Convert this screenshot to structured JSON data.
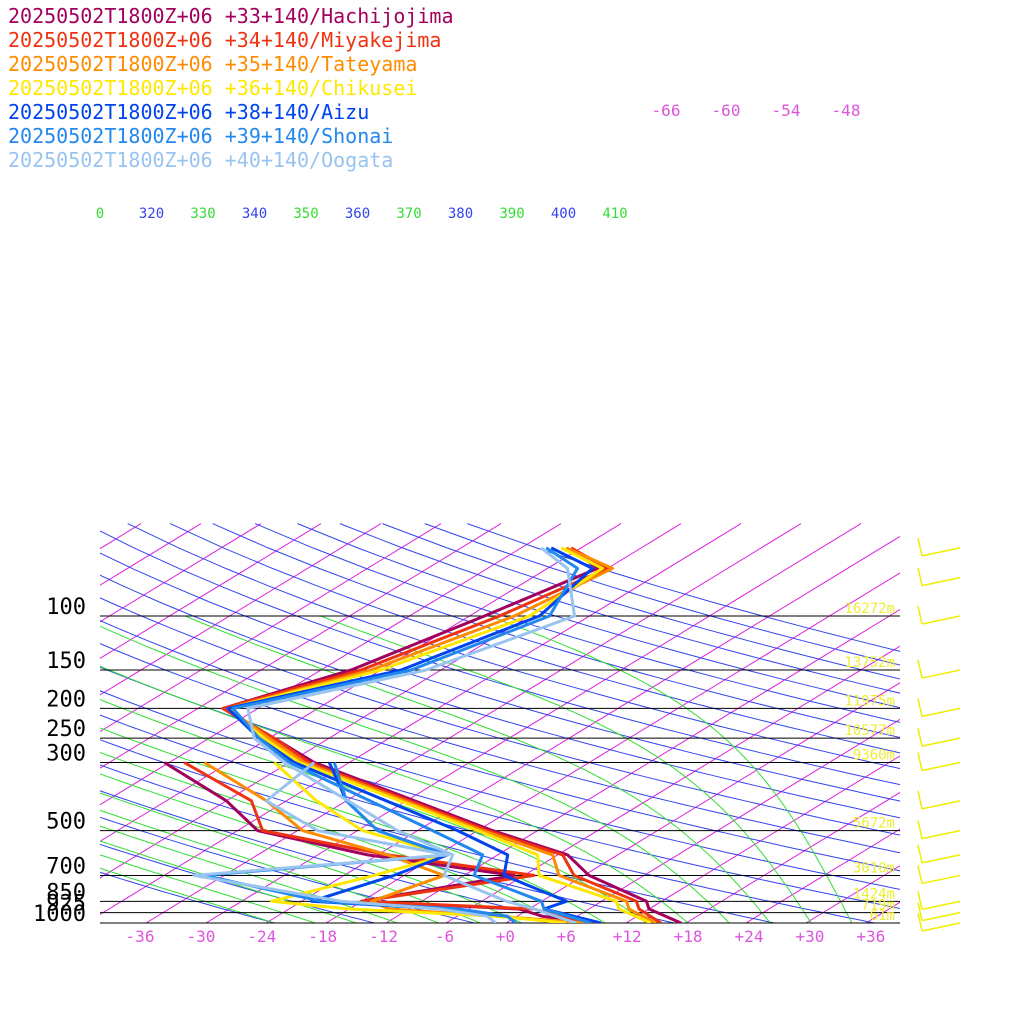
{
  "chart_data": {
    "type": "line",
    "pressure_levels": [
      100,
      150,
      200,
      250,
      300,
      500,
      700,
      850,
      925,
      1000
    ],
    "pressure_labels": [
      "100",
      "150",
      "200",
      "250",
      "300",
      "500",
      "700",
      "850",
      "925",
      "1000"
    ],
    "temperature_ticks": [
      "-36",
      "-30",
      "-24",
      "-18",
      "-12",
      "-6",
      "+0",
      "+6",
      "+12",
      "+18",
      "+24",
      "+30",
      "+36"
    ],
    "isotherm_labels_top": [
      "-66",
      "-60",
      "-54",
      "-48"
    ],
    "theta_labels": [
      "0",
      "320",
      "330",
      "340",
      "350",
      "360",
      "370",
      "380",
      "390",
      "400",
      "410"
    ],
    "height_labels": [
      "16272m",
      "13752m",
      "11975m",
      "10577m",
      "9360m",
      "5672m",
      "3010m",
      "1424m",
      "719m",
      "61m"
    ],
    "colors": {
      "isotherm": "#dd22dd",
      "dry_adiabat": "#3344ee",
      "moist_adiabat": "#33dd33",
      "height_label": "#eeee33",
      "wind_barb": "#eeee00",
      "tick_label": "#dd55dd"
    },
    "series": [
      {
        "name": "20250502T1800Z+06 +33+140/Hachijojima",
        "color": "#a3005e",
        "temperature": [
          [
            60,
            -55
          ],
          [
            70,
            -49
          ],
          [
            100,
            -52.5
          ],
          [
            150,
            -57
          ],
          [
            200,
            -63.5
          ],
          [
            250,
            -53.5
          ],
          [
            300,
            -45.5
          ],
          [
            500,
            -16.5
          ],
          [
            600,
            -5
          ],
          [
            700,
            0.5
          ],
          [
            850,
            10.5
          ],
          [
            900,
            12
          ],
          [
            1000,
            17.5
          ]
        ],
        "dewpoint": [
          [
            300,
            -60.5
          ],
          [
            400,
            -48
          ],
          [
            500,
            -40
          ],
          [
            600,
            -25
          ],
          [
            700,
            -7
          ],
          [
            850,
            -18
          ],
          [
            900,
            -1
          ],
          [
            950,
            2.5
          ],
          [
            1000,
            9
          ]
        ]
      },
      {
        "name": "20250502T1800Z+06 +34+140/Miyakejima",
        "color": "#ee3311",
        "temperature": [
          [
            60,
            -55
          ],
          [
            70,
            -48
          ],
          [
            100,
            -51
          ],
          [
            150,
            -56
          ],
          [
            200,
            -63.5
          ],
          [
            250,
            -53.5
          ],
          [
            300,
            -46
          ],
          [
            500,
            -17
          ],
          [
            600,
            -5.5
          ],
          [
            700,
            -1
          ],
          [
            850,
            9.5
          ],
          [
            900,
            11
          ],
          [
            1000,
            15.5
          ]
        ],
        "dewpoint": [
          [
            300,
            -58.5
          ],
          [
            400,
            -45.5
          ],
          [
            500,
            -39.5
          ],
          [
            600,
            -23
          ],
          [
            700,
            -5
          ],
          [
            850,
            -18
          ],
          [
            900,
            0.5
          ],
          [
            950,
            4
          ],
          [
            1000,
            9
          ]
        ]
      },
      {
        "name": "20250502T1800Z+06 +35+140/Tateyama",
        "color": "#ff8c00",
        "temperature": [
          [
            60,
            -55.5
          ],
          [
            70,
            -47.5
          ],
          [
            100,
            -49.5
          ],
          [
            150,
            -55
          ],
          [
            200,
            -63
          ],
          [
            250,
            -54
          ],
          [
            300,
            -46.5
          ],
          [
            500,
            -17.5
          ],
          [
            600,
            -6.5
          ],
          [
            700,
            -2.5
          ],
          [
            850,
            8.5
          ],
          [
            900,
            10
          ],
          [
            1000,
            15
          ]
        ],
        "dewpoint": [
          [
            300,
            -56.5
          ],
          [
            400,
            -44
          ],
          [
            500,
            -35.5
          ],
          [
            600,
            -23
          ],
          [
            700,
            -14
          ],
          [
            850,
            -17
          ],
          [
            900,
            -14
          ],
          [
            950,
            -2
          ],
          [
            1000,
            8
          ]
        ]
      },
      {
        "name": "20250502T1800Z+06 +36+140/Chikusei",
        "color": "#ffe800",
        "temperature": [
          [
            60,
            -56
          ],
          [
            70,
            -48.5
          ],
          [
            100,
            -48
          ],
          [
            150,
            -54
          ],
          [
            200,
            -63
          ],
          [
            250,
            -54.5
          ],
          [
            300,
            -47
          ],
          [
            500,
            -18
          ],
          [
            600,
            -8
          ],
          [
            700,
            -4.5
          ],
          [
            850,
            7.5
          ],
          [
            900,
            9
          ],
          [
            1000,
            14.5
          ]
        ],
        "dewpoint": [
          [
            300,
            -49.5
          ],
          [
            400,
            -39
          ],
          [
            500,
            -29.5
          ],
          [
            600,
            -17
          ],
          [
            700,
            -21
          ],
          [
            850,
            -27
          ],
          [
            900,
            -18
          ],
          [
            950,
            -2
          ],
          [
            1000,
            6
          ]
        ]
      },
      {
        "name": "20250502T1800Z+06 +38+140/Aizu",
        "color": "#0044ee",
        "temperature": [
          [
            60,
            -57
          ],
          [
            70,
            -49.5
          ],
          [
            100,
            -47
          ],
          [
            150,
            -52
          ],
          [
            200,
            -63
          ],
          [
            250,
            -55
          ],
          [
            300,
            -47.5
          ],
          [
            500,
            -20
          ],
          [
            600,
            -11
          ],
          [
            700,
            -8
          ],
          [
            850,
            2.5
          ],
          [
            900,
            1.5
          ],
          [
            1000,
            9.5
          ]
        ],
        "dewpoint": [
          [
            300,
            -44
          ],
          [
            400,
            -36
          ],
          [
            500,
            -28
          ],
          [
            600,
            -17
          ],
          [
            700,
            -19
          ],
          [
            850,
            -23
          ],
          [
            900,
            -8
          ],
          [
            950,
            -1
          ],
          [
            1000,
            1
          ]
        ]
      },
      {
        "name": "20250502T1800Z+06 +39+140/Shonai",
        "color": "#2288ee",
        "temperature": [
          [
            60,
            -57.5
          ],
          [
            70,
            -51
          ],
          [
            100,
            -46
          ],
          [
            150,
            -51
          ],
          [
            200,
            -62.5
          ],
          [
            250,
            -55
          ],
          [
            300,
            -48
          ],
          [
            500,
            -22.5
          ],
          [
            600,
            -13.5
          ],
          [
            700,
            -11
          ],
          [
            850,
            0
          ],
          [
            900,
            1.5
          ],
          [
            1000,
            8.5
          ]
        ],
        "dewpoint": [
          [
            300,
            -43.5
          ],
          [
            400,
            -36
          ],
          [
            500,
            -28
          ],
          [
            600,
            -17
          ],
          [
            700,
            -38
          ],
          [
            850,
            -22
          ],
          [
            900,
            -7
          ],
          [
            950,
            -1
          ],
          [
            1000,
            1
          ]
        ]
      },
      {
        "name": "20250502T1800Z+06 +40+140/Oogata",
        "color": "#99c4f0",
        "temperature": [
          [
            60,
            -58
          ],
          [
            70,
            -52
          ],
          [
            100,
            -43.5
          ],
          [
            150,
            -49.5
          ],
          [
            200,
            -61
          ],
          [
            250,
            -55.5
          ],
          [
            300,
            -48.5
          ],
          [
            500,
            -26
          ],
          [
            600,
            -16.5
          ],
          [
            700,
            -14
          ],
          [
            850,
            -3.5
          ],
          [
            900,
            0.5
          ],
          [
            1000,
            7
          ]
        ],
        "dewpoint": [
          [
            300,
            -45.5
          ],
          [
            400,
            -44
          ],
          [
            500,
            -34
          ],
          [
            600,
            -17
          ],
          [
            700,
            -39
          ],
          [
            850,
            -20
          ],
          [
            900,
            -9
          ],
          [
            950,
            -3
          ],
          [
            1000,
            -1
          ]
        ]
      }
    ],
    "wind_barbs": [
      {
        "pressure": 60
      },
      {
        "pressure": 75
      },
      {
        "pressure": 100
      },
      {
        "pressure": 150
      },
      {
        "pressure": 200
      },
      {
        "pressure": 250
      },
      {
        "pressure": 300
      },
      {
        "pressure": 400
      },
      {
        "pressure": 500
      },
      {
        "pressure": 600
      },
      {
        "pressure": 700
      },
      {
        "pressure": 850
      },
      {
        "pressure": 925
      },
      {
        "pressure": 1000
      }
    ]
  }
}
